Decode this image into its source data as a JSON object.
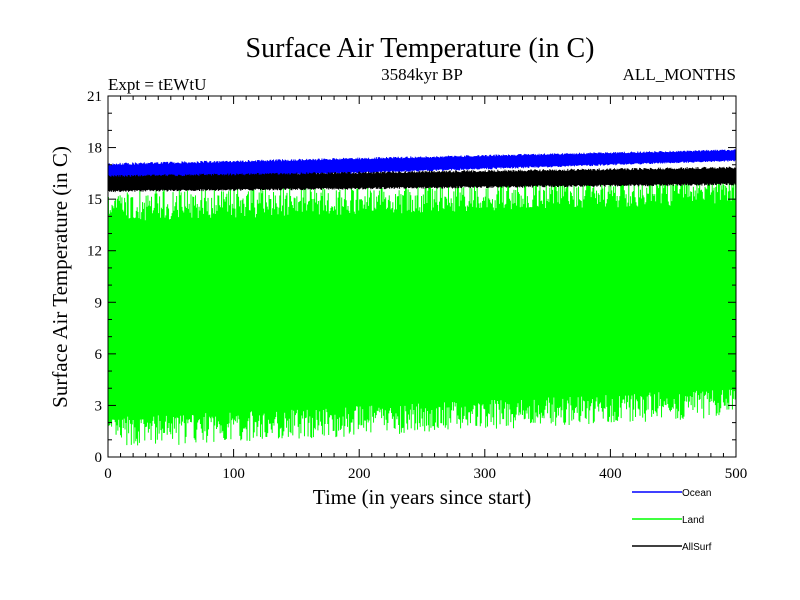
{
  "chart_data": {
    "type": "line",
    "title": "Surface Air Temperature (in C)",
    "subtitle_left": "Expt = tEWtU",
    "subtitle_center": "3584kyr BP",
    "subtitle_right": "ALL_MONTHS",
    "xlabel": "Time (in years since start)",
    "ylabel": "Surface Air Temperature (in C)",
    "xlim": [
      0,
      500
    ],
    "ylim": [
      0,
      21
    ],
    "x_ticks": [
      "0",
      "100",
      "200",
      "300",
      "400",
      "500"
    ],
    "y_ticks": [
      "0",
      "3",
      "6",
      "9",
      "12",
      "15",
      "18",
      "21"
    ],
    "grid": false,
    "legend_position": "bottom-right",
    "series": [
      {
        "name": "Ocean",
        "color": "#0000ff",
        "band_start": [
          16.0,
          17.1
        ],
        "band_end": [
          17.2,
          17.9
        ]
      },
      {
        "name": "Land",
        "color": "#00ff00",
        "band_start": [
          0.5,
          15.5
        ],
        "band_end": [
          2.3,
          16.4
        ]
      },
      {
        "name": "AllSurf",
        "color": "#000000",
        "band_start": [
          15.4,
          16.4
        ],
        "band_end": [
          15.8,
          16.9
        ]
      }
    ]
  }
}
